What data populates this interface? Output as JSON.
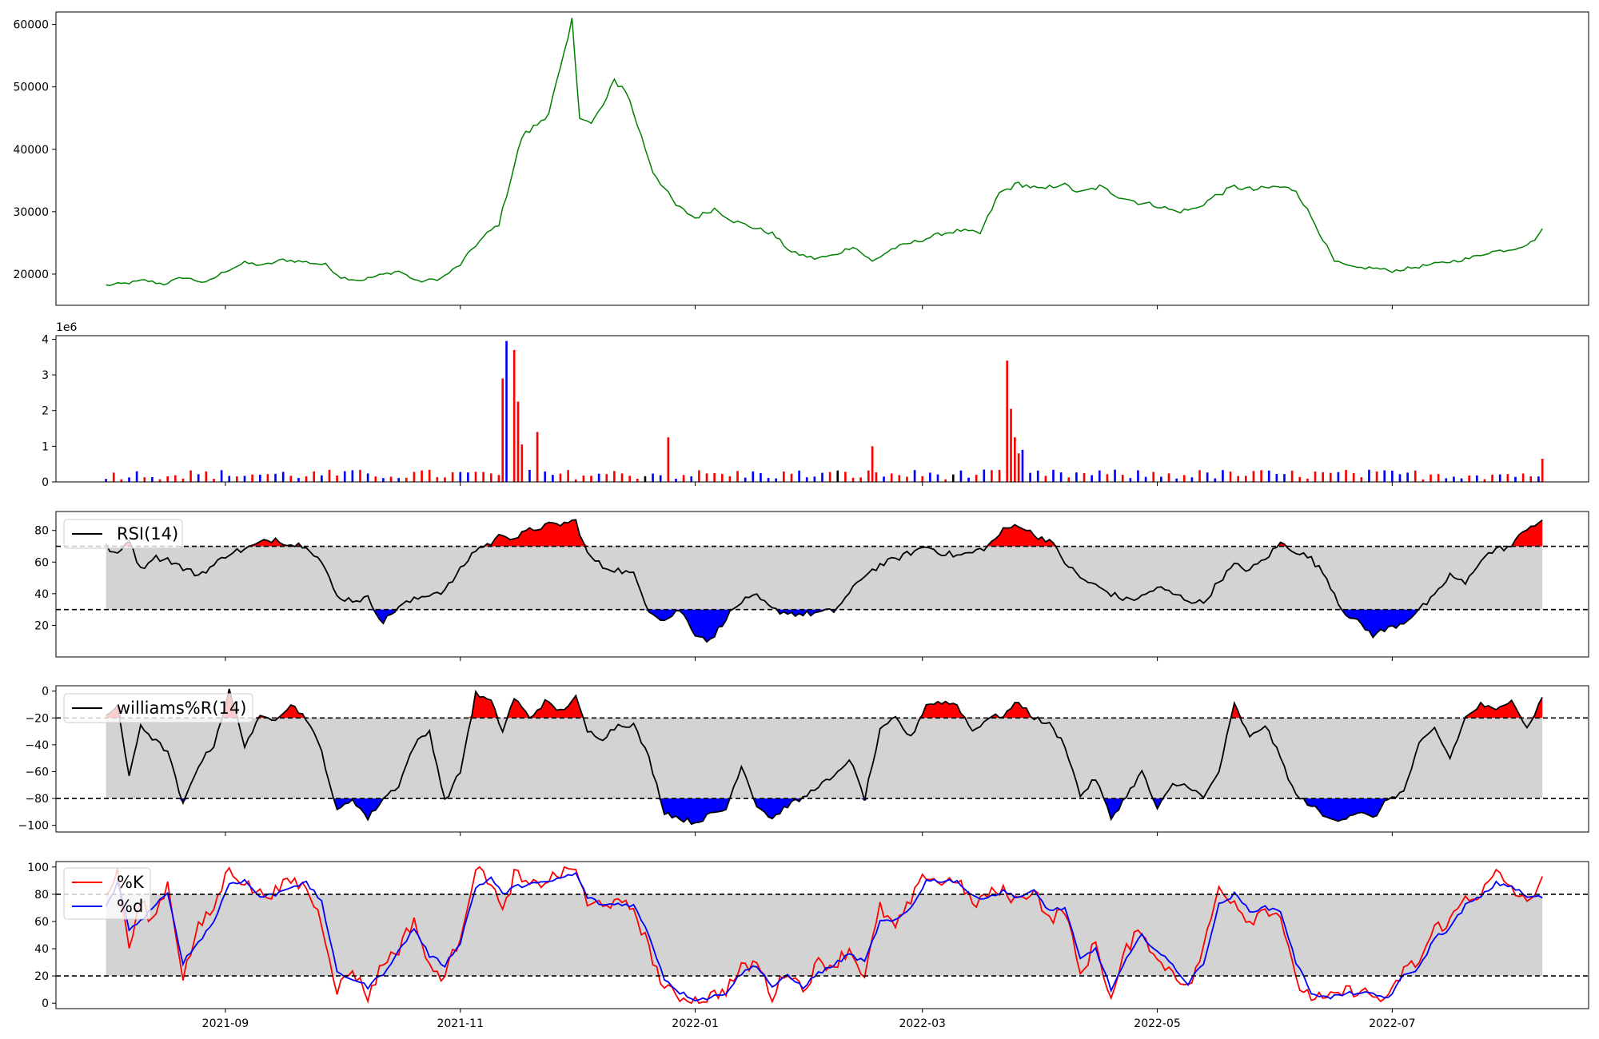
{
  "chart_data": [
    {
      "type": "line",
      "name": "price",
      "ylim": [
        15000,
        62000
      ],
      "yticks": [
        20000,
        30000,
        40000,
        50000,
        60000
      ],
      "color": "#008000",
      "x_anchors": [
        "2021-08-01",
        "2021-08-06",
        "2021-08-11",
        "2021-08-16",
        "2021-08-21",
        "2021-08-27",
        "2021-09-01",
        "2021-09-06",
        "2021-09-11",
        "2021-09-16",
        "2021-09-21",
        "2021-09-27",
        "2021-10-01",
        "2021-10-06",
        "2021-10-11",
        "2021-10-16",
        "2021-10-21",
        "2021-10-27",
        "2021-11-01",
        "2021-11-04",
        "2021-11-08",
        "2021-11-11",
        "2021-11-14",
        "2021-11-17",
        "2021-11-21",
        "2021-11-24",
        "2021-11-28",
        "2021-11-30",
        "2021-12-02",
        "2021-12-05",
        "2021-12-09",
        "2021-12-11",
        "2021-12-14",
        "2021-12-21",
        "2021-12-27",
        "2022-01-01",
        "2022-01-06",
        "2022-01-11",
        "2022-01-16",
        "2022-01-21",
        "2022-01-26",
        "2022-02-01",
        "2022-02-06",
        "2022-02-11",
        "2022-02-16",
        "2022-02-21",
        "2022-02-26",
        "2022-03-01",
        "2022-03-06",
        "2022-03-11",
        "2022-03-16",
        "2022-03-21",
        "2022-03-26",
        "2022-04-01",
        "2022-04-06",
        "2022-04-11",
        "2022-04-16",
        "2022-04-21",
        "2022-04-26",
        "2022-05-01",
        "2022-05-06",
        "2022-05-11",
        "2022-05-16",
        "2022-05-21",
        "2022-05-26",
        "2022-06-01",
        "2022-06-06",
        "2022-06-11",
        "2022-06-16",
        "2022-06-21",
        "2022-06-26",
        "2022-07-01",
        "2022-07-06",
        "2022-07-11",
        "2022-07-16",
        "2022-07-21",
        "2022-07-26",
        "2022-08-01",
        "2022-08-06",
        "2022-08-09"
      ],
      "y_anchors": [
        18200,
        18500,
        19000,
        18400,
        19500,
        18600,
        20500,
        21800,
        21400,
        22300,
        22000,
        21500,
        19500,
        19000,
        19800,
        20500,
        18800,
        19300,
        21500,
        24000,
        26500,
        28000,
        35000,
        42000,
        44000,
        46000,
        55000,
        60500,
        45500,
        44000,
        48000,
        51000,
        49500,
        36500,
        31000,
        29000,
        30500,
        28500,
        27500,
        26500,
        23500,
        22500,
        23000,
        24500,
        22000,
        24000,
        25000,
        25500,
        26500,
        27000,
        26500,
        33000,
        34500,
        33500,
        34500,
        33000,
        34000,
        32500,
        31500,
        31000,
        30000,
        30500,
        32500,
        34000,
        33500,
        34000,
        33500,
        28000,
        22000,
        21000,
        21000,
        20500,
        21000,
        21500,
        22000,
        22500,
        23500,
        24000,
        25000,
        27000
      ],
      "series": [
        {
          "values": "interpolated from y_anchors"
        }
      ]
    },
    {
      "type": "bar",
      "name": "volume",
      "ylim": [
        0,
        4100000
      ],
      "yticks": [
        0,
        1000000,
        2000000,
        3000000,
        4000000
      ],
      "ytick_labels": [
        "0",
        "1",
        "2",
        "3",
        "4"
      ],
      "offset_text": "1e6",
      "colors": {
        "up": "#ff0000",
        "down": "#0000ff",
        "flat": "#000000"
      },
      "baseline": 200000,
      "spikes": [
        {
          "date": "2021-11-12",
          "value": 2900000,
          "color": "up"
        },
        {
          "date": "2021-11-13",
          "value": 3950000,
          "color": "down"
        },
        {
          "date": "2021-11-15",
          "value": 3700000,
          "color": "up"
        },
        {
          "date": "2021-11-16",
          "value": 2250000,
          "color": "up"
        },
        {
          "date": "2021-11-17",
          "value": 1050000,
          "color": "up"
        },
        {
          "date": "2021-11-21",
          "value": 1400000,
          "color": "up"
        },
        {
          "date": "2021-12-25",
          "value": 1250000,
          "color": "up"
        },
        {
          "date": "2022-02-16",
          "value": 1000000,
          "color": "up"
        },
        {
          "date": "2022-03-23",
          "value": 3400000,
          "color": "up"
        },
        {
          "date": "2022-03-24",
          "value": 2050000,
          "color": "up"
        },
        {
          "date": "2022-03-25",
          "value": 1250000,
          "color": "up"
        },
        {
          "date": "2022-03-26",
          "value": 800000,
          "color": "up"
        },
        {
          "date": "2022-03-27",
          "value": 900000,
          "color": "down"
        },
        {
          "date": "2022-08-09",
          "value": 650000,
          "color": "up"
        }
      ]
    },
    {
      "type": "line",
      "name": "rsi",
      "ylim": [
        0,
        92
      ],
      "yticks": [
        20,
        40,
        60,
        80
      ],
      "legend": {
        "label": "RSI(14)",
        "color": "#000000"
      },
      "thresholds": [
        70,
        30
      ],
      "fill_colors": {
        "band": "#d3d3d3",
        "upper": "#ff0000",
        "lower": "#0000ff"
      },
      "x_anchors": [
        "2021-08-01",
        "2021-08-04",
        "2021-08-07",
        "2021-08-10",
        "2021-08-13",
        "2021-08-17",
        "2021-08-21",
        "2021-08-25",
        "2021-08-29",
        "2021-09-02",
        "2021-09-06",
        "2021-09-10",
        "2021-09-14",
        "2021-09-18",
        "2021-09-22",
        "2021-09-26",
        "2021-09-30",
        "2021-10-04",
        "2021-10-08",
        "2021-10-12",
        "2021-10-16",
        "2021-10-20",
        "2021-10-24",
        "2021-10-28",
        "2021-11-01",
        "2021-11-05",
        "2021-11-09",
        "2021-11-12",
        "2021-11-15",
        "2021-11-19",
        "2021-11-23",
        "2021-11-27",
        "2021-12-01",
        "2021-12-04",
        "2021-12-08",
        "2021-12-12",
        "2021-12-16",
        "2021-12-20",
        "2021-12-24",
        "2021-12-28",
        "2022-01-01",
        "2022-01-05",
        "2022-01-09",
        "2022-01-13",
        "2022-01-17",
        "2022-01-21",
        "2022-01-25",
        "2022-01-29",
        "2022-02-02",
        "2022-02-06",
        "2022-02-10",
        "2022-02-14",
        "2022-02-18",
        "2022-02-22",
        "2022-02-26",
        "2022-03-02",
        "2022-03-06",
        "2022-03-10",
        "2022-03-14",
        "2022-03-18",
        "2022-03-22",
        "2022-03-26",
        "2022-03-30",
        "2022-04-03",
        "2022-04-07",
        "2022-04-11",
        "2022-04-15",
        "2022-04-19",
        "2022-04-23",
        "2022-04-27",
        "2022-05-01",
        "2022-05-05",
        "2022-05-09",
        "2022-05-13",
        "2022-05-17",
        "2022-05-21",
        "2022-05-25",
        "2022-05-29",
        "2022-06-02",
        "2022-06-06",
        "2022-06-10",
        "2022-06-14",
        "2022-06-18",
        "2022-06-22",
        "2022-06-26",
        "2022-06-30",
        "2022-07-04",
        "2022-07-08",
        "2022-07-12",
        "2022-07-16",
        "2022-07-20",
        "2022-07-24",
        "2022-07-28",
        "2022-08-01",
        "2022-08-05",
        "2022-08-09"
      ],
      "y_anchors": [
        70,
        64,
        75,
        55,
        63,
        62,
        56,
        52,
        58,
        66,
        68,
        72,
        75,
        71,
        71,
        60,
        38,
        36,
        37,
        22,
        32,
        36,
        40,
        42,
        55,
        68,
        72,
        78,
        75,
        80,
        83,
        84,
        86,
        65,
        57,
        55,
        52,
        30,
        23,
        30,
        15,
        10,
        25,
        35,
        38,
        30,
        28,
        27,
        28,
        29,
        40,
        52,
        58,
        62,
        66,
        70,
        66,
        64,
        66,
        70,
        80,
        84,
        77,
        74,
        60,
        50,
        45,
        40,
        36,
        38,
        44,
        40,
        36,
        34,
        48,
        58,
        55,
        62,
        72,
        67,
        62,
        50,
        30,
        22,
        14,
        18,
        22,
        30,
        38,
        52,
        46,
        62,
        68,
        70,
        82,
        86
      ]
    },
    {
      "type": "line",
      "name": "williams",
      "ylim": [
        -105,
        4
      ],
      "yticks": [
        0,
        -20,
        -40,
        -60,
        -80,
        -100
      ],
      "yticks_labels": [
        "0",
        "−20",
        "−40",
        "−60",
        "−80",
        "−100"
      ],
      "legend": {
        "label": "williams%R(14)",
        "color": "#000000"
      },
      "thresholds": [
        -20,
        -80
      ],
      "fill_colors": {
        "band": "#d3d3d3",
        "upper": "#ff0000",
        "lower": "#0000ff"
      },
      "x_anchors": [
        "2021-08-01",
        "2021-08-04",
        "2021-08-07",
        "2021-08-10",
        "2021-08-13",
        "2021-08-17",
        "2021-08-21",
        "2021-08-25",
        "2021-08-29",
        "2021-09-02",
        "2021-09-06",
        "2021-09-10",
        "2021-09-14",
        "2021-09-18",
        "2021-09-22",
        "2021-09-26",
        "2021-09-30",
        "2021-10-04",
        "2021-10-08",
        "2021-10-12",
        "2021-10-16",
        "2021-10-20",
        "2021-10-24",
        "2021-10-28",
        "2021-11-01",
        "2021-11-05",
        "2021-11-09",
        "2021-11-12",
        "2021-11-15",
        "2021-11-19",
        "2021-11-23",
        "2021-11-27",
        "2021-12-01",
        "2021-12-04",
        "2021-12-08",
        "2021-12-12",
        "2021-12-16",
        "2021-12-20",
        "2021-12-24",
        "2021-12-28",
        "2022-01-01",
        "2022-01-05",
        "2022-01-09",
        "2022-01-13",
        "2022-01-17",
        "2022-01-21",
        "2022-01-25",
        "2022-01-29",
        "2022-02-02",
        "2022-02-06",
        "2022-02-10",
        "2022-02-14",
        "2022-02-18",
        "2022-02-22",
        "2022-02-26",
        "2022-03-02",
        "2022-03-06",
        "2022-03-10",
        "2022-03-14",
        "2022-03-18",
        "2022-03-22",
        "2022-03-26",
        "2022-03-30",
        "2022-04-03",
        "2022-04-07",
        "2022-04-11",
        "2022-04-15",
        "2022-04-19",
        "2022-04-23",
        "2022-04-27",
        "2022-05-01",
        "2022-05-05",
        "2022-05-09",
        "2022-05-13",
        "2022-05-17",
        "2022-05-21",
        "2022-05-25",
        "2022-05-29",
        "2022-06-02",
        "2022-06-06",
        "2022-06-10",
        "2022-06-14",
        "2022-06-18",
        "2022-06-22",
        "2022-06-26",
        "2022-06-30",
        "2022-07-04",
        "2022-07-08",
        "2022-07-12",
        "2022-07-16",
        "2022-07-20",
        "2022-07-24",
        "2022-07-28",
        "2022-08-01",
        "2022-08-05",
        "2022-08-09"
      ],
      "y_anchors": [
        -20,
        -10,
        -65,
        -25,
        -35,
        -45,
        -85,
        -55,
        -40,
        0,
        -40,
        -20,
        -20,
        -10,
        -20,
        -45,
        -90,
        -80,
        -95,
        -80,
        -70,
        -40,
        -30,
        -82,
        -60,
        -2,
        -8,
        -30,
        -5,
        -20,
        -8,
        -15,
        -5,
        -30,
        -35,
        -25,
        -25,
        -50,
        -90,
        -95,
        -98,
        -92,
        -88,
        -55,
        -85,
        -95,
        -85,
        -80,
        -70,
        -65,
        -50,
        -80,
        -30,
        -20,
        -35,
        -10,
        -8,
        -10,
        -30,
        -20,
        -18,
        -8,
        -20,
        -25,
        -40,
        -78,
        -65,
        -95,
        -78,
        -60,
        -88,
        -70,
        -70,
        -80,
        -60,
        -10,
        -35,
        -25,
        -50,
        -78,
        -85,
        -95,
        -95,
        -90,
        -95,
        -80,
        -75,
        -40,
        -28,
        -50,
        -20,
        -10,
        -15,
        -5,
        -28,
        -5
      ]
    },
    {
      "type": "line",
      "name": "stochastic",
      "ylim": [
        -4,
        104
      ],
      "yticks": [
        0,
        20,
        40,
        60,
        80,
        100
      ],
      "thresholds": [
        80,
        20
      ],
      "fill_colors": {
        "band": "#d3d3d3"
      },
      "legend": [
        {
          "label": "%K",
          "color": "#ff0000"
        },
        {
          "label": "%d",
          "color": "#0000ff"
        }
      ],
      "x_ticks": [
        "2021-09",
        "2021-11",
        "2022-01",
        "2022-03",
        "2022-05",
        "2022-07"
      ],
      "x_anchors": [
        "2021-08-01",
        "2021-08-04",
        "2021-08-07",
        "2021-08-10",
        "2021-08-13",
        "2021-08-17",
        "2021-08-21",
        "2021-08-25",
        "2021-08-29",
        "2021-09-02",
        "2021-09-06",
        "2021-09-10",
        "2021-09-14",
        "2021-09-18",
        "2021-09-22",
        "2021-09-26",
        "2021-09-30",
        "2021-10-04",
        "2021-10-08",
        "2021-10-12",
        "2021-10-16",
        "2021-10-20",
        "2021-10-24",
        "2021-10-28",
        "2021-11-01",
        "2021-11-05",
        "2021-11-09",
        "2021-11-12",
        "2021-11-15",
        "2021-11-19",
        "2021-11-23",
        "2021-11-27",
        "2021-12-01",
        "2021-12-04",
        "2021-12-08",
        "2021-12-12",
        "2021-12-16",
        "2021-12-20",
        "2021-12-24",
        "2021-12-28",
        "2022-01-01",
        "2022-01-05",
        "2022-01-09",
        "2022-01-13",
        "2022-01-17",
        "2022-01-21",
        "2022-01-25",
        "2022-01-29",
        "2022-02-02",
        "2022-02-06",
        "2022-02-10",
        "2022-02-14",
        "2022-02-18",
        "2022-02-22",
        "2022-02-26",
        "2022-03-02",
        "2022-03-06",
        "2022-03-10",
        "2022-03-14",
        "2022-03-18",
        "2022-03-22",
        "2022-03-26",
        "2022-03-30",
        "2022-04-03",
        "2022-04-07",
        "2022-04-11",
        "2022-04-15",
        "2022-04-19",
        "2022-04-23",
        "2022-04-27",
        "2022-05-01",
        "2022-05-05",
        "2022-05-09",
        "2022-05-13",
        "2022-05-17",
        "2022-05-21",
        "2022-05-25",
        "2022-05-29",
        "2022-06-02",
        "2022-06-06",
        "2022-06-10",
        "2022-06-14",
        "2022-06-18",
        "2022-06-22",
        "2022-06-26",
        "2022-06-30",
        "2022-07-04",
        "2022-07-08",
        "2022-07-12",
        "2022-07-16",
        "2022-07-20",
        "2022-07-24",
        "2022-07-28",
        "2022-08-01",
        "2022-08-05",
        "2022-08-09"
      ],
      "series": [
        {
          "name": "%K",
          "values": [
            80,
            95,
            40,
            75,
            60,
            88,
            20,
            55,
            70,
            100,
            88,
            80,
            82,
            90,
            85,
            60,
            10,
            25,
            5,
            30,
            40,
            62,
            25,
            20,
            50,
            100,
            90,
            65,
            95,
            85,
            90,
            95,
            100,
            70,
            75,
            72,
            70,
            40,
            10,
            5,
            2,
            5,
            10,
            25,
            30,
            5,
            25,
            10,
            30,
            28,
            40,
            20,
            70,
            55,
            75,
            95,
            88,
            92,
            72,
            80,
            82,
            75,
            85,
            60,
            70,
            20,
            45,
            2,
            40,
            55,
            30,
            25,
            10,
            40,
            85,
            75,
            60,
            70,
            65,
            15,
            5,
            2,
            8,
            10,
            5,
            2,
            25,
            30,
            55,
            60,
            78,
            80,
            95,
            85,
            72,
            94
          ]
        },
        {
          "name": "%d",
          "values": [
            70,
            88,
            55,
            60,
            70,
            80,
            30,
            45,
            60,
            88,
            90,
            78,
            80,
            86,
            88,
            75,
            22,
            18,
            12,
            22,
            38,
            55,
            35,
            28,
            45,
            85,
            92,
            80,
            85,
            88,
            88,
            92,
            95,
            78,
            72,
            73,
            72,
            50,
            18,
            8,
            3,
            4,
            8,
            22,
            28,
            12,
            20,
            12,
            22,
            28,
            36,
            30,
            60,
            60,
            70,
            90,
            90,
            90,
            78,
            78,
            82,
            78,
            82,
            68,
            70,
            32,
            40,
            10,
            32,
            50,
            38,
            28,
            14,
            30,
            72,
            80,
            68,
            70,
            68,
            30,
            8,
            4,
            6,
            8,
            6,
            4,
            20,
            26,
            48,
            55,
            72,
            78,
            88,
            86,
            78,
            78
          ]
        }
      ]
    }
  ]
}
